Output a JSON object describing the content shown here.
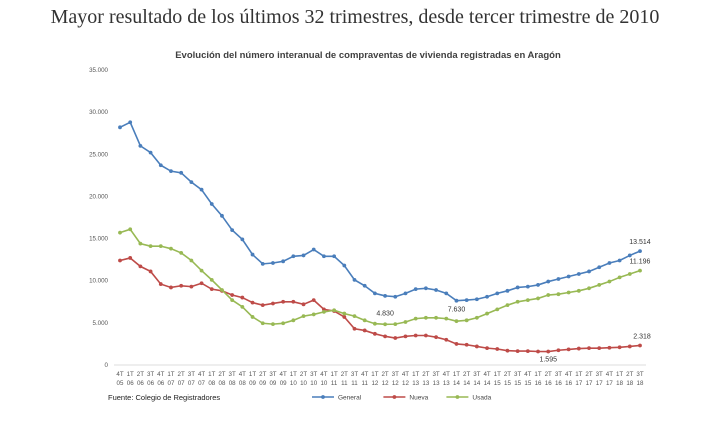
{
  "headline": "Mayor resultado de los últimos 32 trimestres, desde tercer trimestre de 2010",
  "source": "Fuente: Colegio de Registradores",
  "chart_data": {
    "type": "line",
    "title": "Evolución del número interanual de compraventas de vivienda registradas en Aragón",
    "ylim": [
      0,
      35000
    ],
    "yticks": [
      "0",
      "5.000",
      "10.000",
      "15.000",
      "20.000",
      "25.000",
      "30.000",
      "35.000"
    ],
    "grid": false,
    "legend": "bottom",
    "categories": [
      [
        "4T",
        "05"
      ],
      [
        "1T",
        "06"
      ],
      [
        "2T",
        "06"
      ],
      [
        "3T",
        "06"
      ],
      [
        "4T",
        "06"
      ],
      [
        "1T",
        "07"
      ],
      [
        "2T",
        "07"
      ],
      [
        "3T",
        "07"
      ],
      [
        "4T",
        "07"
      ],
      [
        "1T",
        "08"
      ],
      [
        "2T",
        "08"
      ],
      [
        "3T",
        "08"
      ],
      [
        "4T",
        "08"
      ],
      [
        "1T",
        "09"
      ],
      [
        "2T",
        "09"
      ],
      [
        "3T",
        "09"
      ],
      [
        "4T",
        "09"
      ],
      [
        "1T",
        "10"
      ],
      [
        "2T",
        "10"
      ],
      [
        "3T",
        "10"
      ],
      [
        "4T",
        "10"
      ],
      [
        "1T",
        "11"
      ],
      [
        "2T",
        "11"
      ],
      [
        "3T",
        "11"
      ],
      [
        "4T",
        "11"
      ],
      [
        "1T",
        "12"
      ],
      [
        "2T",
        "12"
      ],
      [
        "3T",
        "12"
      ],
      [
        "4T",
        "12"
      ],
      [
        "1T",
        "13"
      ],
      [
        "2T",
        "13"
      ],
      [
        "3T",
        "13"
      ],
      [
        "4T",
        "13"
      ],
      [
        "1T",
        "14"
      ],
      [
        "2T",
        "14"
      ],
      [
        "3T",
        "14"
      ],
      [
        "4T",
        "14"
      ],
      [
        "1T",
        "15"
      ],
      [
        "2T",
        "15"
      ],
      [
        "3T",
        "15"
      ],
      [
        "4T",
        "15"
      ],
      [
        "1T",
        "16"
      ],
      [
        "2T",
        "16"
      ],
      [
        "3T",
        "16"
      ],
      [
        "4T",
        "16"
      ],
      [
        "1T",
        "17"
      ],
      [
        "2T",
        "17"
      ],
      [
        "3T",
        "17"
      ],
      [
        "4T",
        "17"
      ],
      [
        "1T",
        "18"
      ],
      [
        "2T",
        "18"
      ],
      [
        "3T",
        "18"
      ]
    ],
    "series": [
      {
        "name": "General",
        "color": "#4a7ebb",
        "values": [
          28200,
          28800,
          26000,
          25200,
          23700,
          23000,
          22800,
          21700,
          20800,
          19100,
          17700,
          16000,
          14900,
          13100,
          12000,
          12100,
          12300,
          12900,
          13000,
          13700,
          12900,
          12900,
          11800,
          10100,
          9400,
          8500,
          8200,
          8100,
          8500,
          9000,
          9100,
          8900,
          8500,
          7630,
          7700,
          7800,
          8100,
          8500,
          8800,
          9200,
          9300,
          9500,
          9900,
          10200,
          10500,
          10800,
          11100,
          11600,
          12100,
          12400,
          13000,
          13514
        ]
      },
      {
        "name": "Nueva",
        "color": "#be4b48",
        "values": [
          12400,
          12700,
          11700,
          11100,
          9600,
          9200,
          9400,
          9300,
          9700,
          9000,
          8800,
          8300,
          8000,
          7400,
          7100,
          7300,
          7500,
          7500,
          7200,
          7700,
          6600,
          6400,
          5700,
          4300,
          4100,
          3700,
          3400,
          3200,
          3400,
          3500,
          3500,
          3300,
          3000,
          2500,
          2400,
          2200,
          2000,
          1900,
          1700,
          1650,
          1650,
          1600,
          1595,
          1750,
          1850,
          1950,
          2000,
          2000,
          2050,
          2100,
          2200,
          2318
        ]
      },
      {
        "name": "Usada",
        "color": "#98b954",
        "values": [
          15700,
          16100,
          14400,
          14100,
          14100,
          13800,
          13300,
          12400,
          11200,
          10100,
          8900,
          7700,
          6900,
          5700,
          4950,
          4850,
          4950,
          5300,
          5800,
          6000,
          6300,
          6500,
          6100,
          5800,
          5300,
          4900,
          4830,
          4850,
          5100,
          5500,
          5600,
          5600,
          5500,
          5200,
          5300,
          5600,
          6100,
          6600,
          7100,
          7500,
          7700,
          7900,
          8300,
          8400,
          8600,
          8800,
          9100,
          9500,
          9900,
          10400,
          10800,
          11196
        ]
      }
    ],
    "annotations": [
      {
        "series": "General",
        "index": 51,
        "text": "13.514"
      },
      {
        "series": "Usada",
        "index": 51,
        "text": "11.196"
      },
      {
        "series": "Nueva",
        "index": 51,
        "text": "2.318"
      },
      {
        "series": "General",
        "index": 33,
        "text": "7.630"
      },
      {
        "series": "Usada",
        "index": 26,
        "text": "4.830"
      },
      {
        "series": "Nueva",
        "index": 42,
        "text": "1.595"
      }
    ]
  }
}
